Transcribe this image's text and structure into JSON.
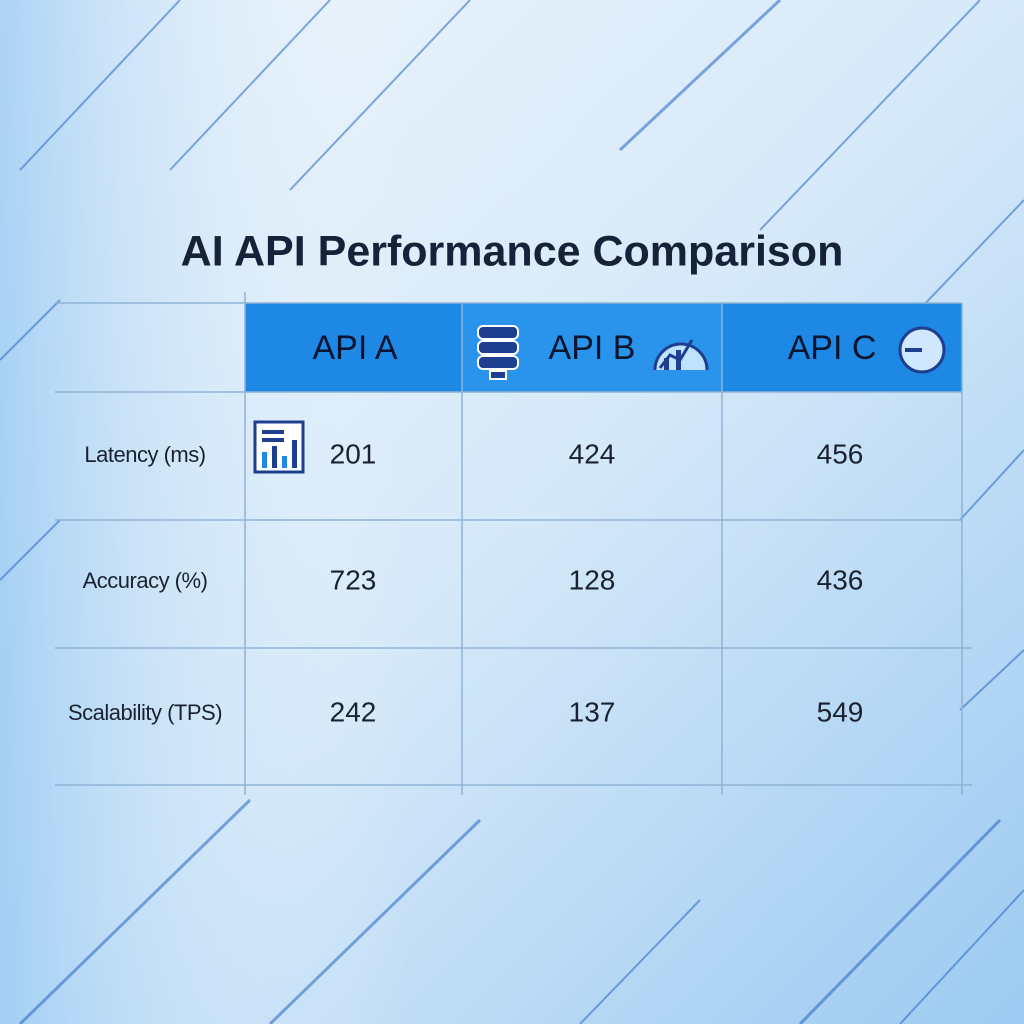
{
  "title": "AI API Performance Comparison",
  "table": {
    "columns": [
      "API A",
      "API B",
      "API C"
    ],
    "rows": [
      {
        "label": "Latency (ms)",
        "values": [
          201,
          424,
          456
        ]
      },
      {
        "label": "Accuracy (%)",
        "values": [
          723,
          128,
          436
        ]
      },
      {
        "label": "Scalability (TPS)",
        "values": [
          242,
          137,
          549
        ]
      }
    ]
  }
}
